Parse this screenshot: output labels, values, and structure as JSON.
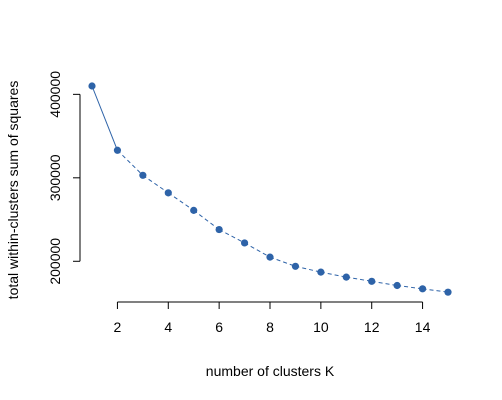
{
  "chart_data": {
    "type": "line",
    "title": "",
    "xlabel": "number of clusters K",
    "ylabel": "total within-clusters sum of squares",
    "xlim": [
      1,
      15
    ],
    "ylim": [
      162000,
      410000
    ],
    "x_ticks": [
      2,
      4,
      6,
      8,
      10,
      12,
      14
    ],
    "y_ticks": [
      200000,
      300000,
      400000
    ],
    "x_tick_labels": [
      "2",
      "4",
      "6",
      "8",
      "10",
      "12",
      "14"
    ],
    "y_tick_labels": [
      "200000",
      "300000",
      "400000"
    ],
    "grid": false,
    "legend": "none",
    "series": [
      {
        "x": [
          1,
          2,
          3,
          4,
          5,
          6,
          7,
          8,
          9,
          10,
          11,
          12,
          13,
          14,
          15
        ],
        "values": [
          410000,
          333000,
          303000,
          282000,
          261000,
          238000,
          222000,
          205000,
          194000,
          187000,
          181000,
          176000,
          171000,
          167000,
          163000
        ],
        "color": "#2e63a8",
        "line_style": "solid-then-dashed",
        "marker": "filled-circle"
      }
    ]
  }
}
